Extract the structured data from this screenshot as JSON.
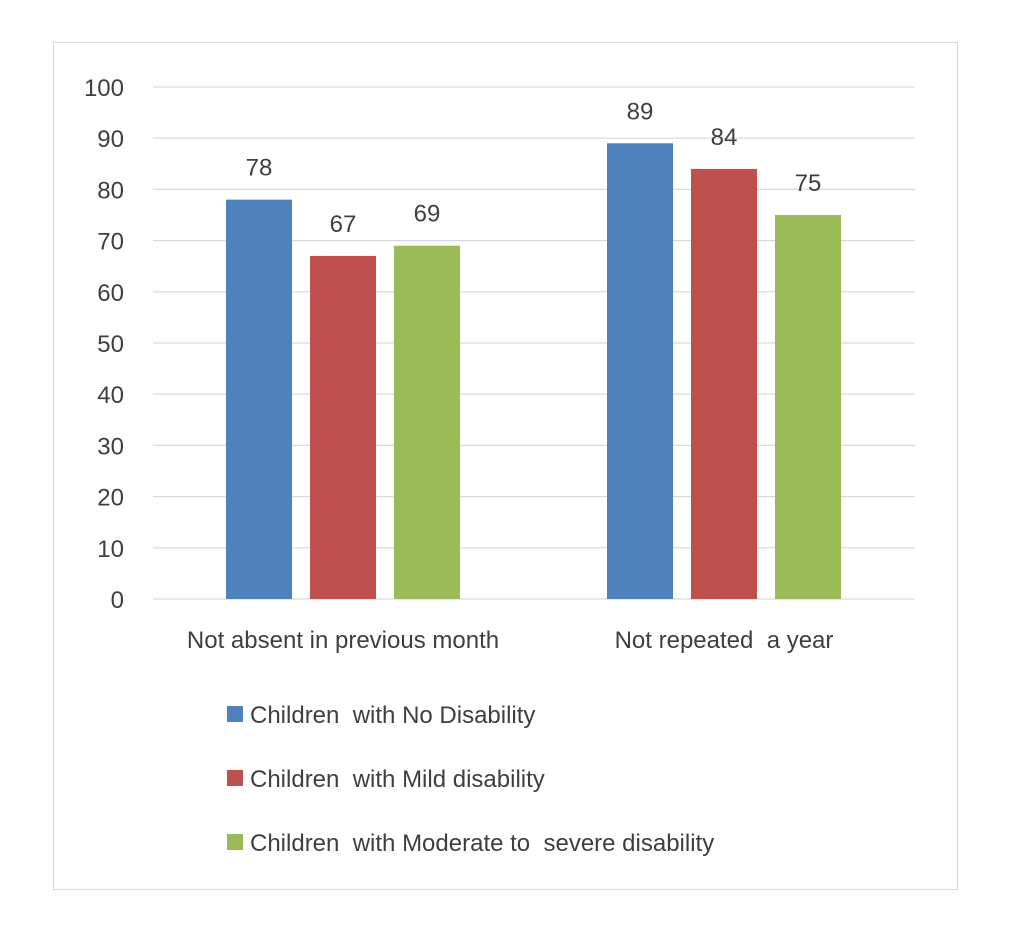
{
  "chart_data": {
    "type": "bar",
    "title": "",
    "xlabel": "",
    "ylabel": "",
    "ylim": [
      0,
      100
    ],
    "yticks": [
      0,
      10,
      20,
      30,
      40,
      50,
      60,
      70,
      80,
      90,
      100
    ],
    "grid": true,
    "legend_position": "bottom",
    "categories": [
      "Not absent in previous month",
      "Not repeated  a year"
    ],
    "series": [
      {
        "name": "Children  with No Disability",
        "color": "#4f81bd",
        "values": [
          78,
          89
        ]
      },
      {
        "name": "Children  with Mild disability",
        "color": "#c0504d",
        "values": [
          67,
          84
        ]
      },
      {
        "name": "Children  with Moderate to  severe disability",
        "color": "#9bbb59",
        "values": [
          69,
          75
        ]
      }
    ]
  }
}
